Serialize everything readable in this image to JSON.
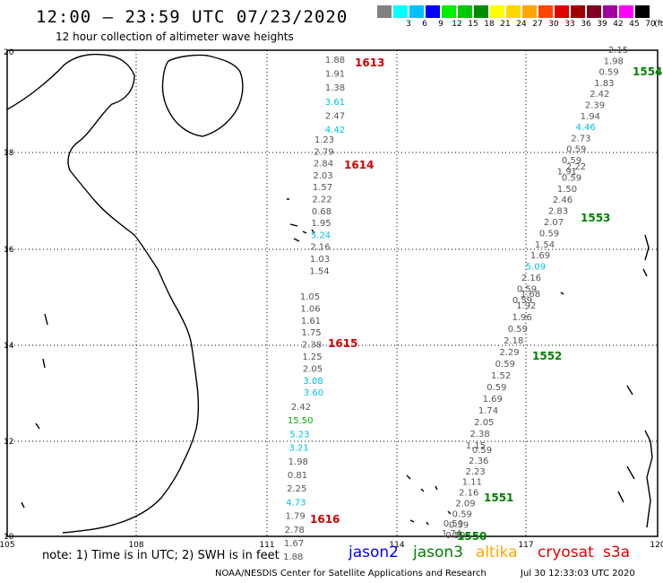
{
  "header": {
    "title": "12:00 – 23:59 UTC 07/23/2020",
    "subtitle": "12 hour collection of altimeter wave heights"
  },
  "scale": {
    "unit": "(ft)",
    "bins": [
      {
        "label": "",
        "color": "#808080"
      },
      {
        "label": "3",
        "color": "#00ffff"
      },
      {
        "label": "6",
        "color": "#00bfff"
      },
      {
        "label": "9",
        "color": "#0000ff"
      },
      {
        "label": "12",
        "color": "#00ee00"
      },
      {
        "label": "15",
        "color": "#00c800"
      },
      {
        "label": "18",
        "color": "#008c00"
      },
      {
        "label": "21",
        "color": "#ffff00"
      },
      {
        "label": "24",
        "color": "#ffd700"
      },
      {
        "label": "27",
        "color": "#ffa500"
      },
      {
        "label": "30",
        "color": "#ff4500"
      },
      {
        "label": "33",
        "color": "#e00000"
      },
      {
        "label": "36",
        "color": "#a00000"
      },
      {
        "label": "39",
        "color": "#800020"
      },
      {
        "label": "42",
        "color": "#a000a0"
      },
      {
        "label": "45",
        "color": "#ff00ff"
      },
      {
        "label": "70",
        "color": "#000000"
      }
    ]
  },
  "axes": {
    "lon_labels": [
      "105",
      "108",
      "111",
      "114",
      "117",
      "120"
    ],
    "lat_labels": [
      "10",
      "12",
      "14",
      "16",
      "18",
      "20"
    ]
  },
  "tracks": [
    {
      "id": "1613",
      "color": "#d00000",
      "values": [
        {
          "v": "1.88",
          "c": "#555555"
        },
        {
          "v": "1.91",
          "c": "#555555"
        },
        {
          "v": "1.38",
          "c": "#555555"
        },
        {
          "v": "3.61",
          "c": "#00c0e0"
        },
        {
          "v": "2.47",
          "c": "#555555"
        },
        {
          "v": "4.42",
          "c": "#00c0e0"
        }
      ]
    },
    {
      "id": "1614",
      "color": "#d00000",
      "values": [
        {
          "v": "1.23",
          "c": "#555555"
        },
        {
          "v": "2.79",
          "c": "#555555"
        },
        {
          "v": "2.84",
          "c": "#555555"
        },
        {
          "v": "2.03",
          "c": "#555555"
        },
        {
          "v": "1.57",
          "c": "#555555"
        },
        {
          "v": "2.22",
          "c": "#555555"
        },
        {
          "v": "0.68",
          "c": "#555555"
        },
        {
          "v": "1.95",
          "c": "#555555"
        },
        {
          "v": "5.24",
          "c": "#00c0e0"
        },
        {
          "v": "2.16",
          "c": "#555555"
        },
        {
          "v": "1.03",
          "c": "#555555"
        },
        {
          "v": "1.54",
          "c": "#555555"
        }
      ]
    },
    {
      "id": "1615",
      "color": "#d00000",
      "values": [
        {
          "v": "1.05",
          "c": "#555555"
        },
        {
          "v": "1.06",
          "c": "#555555"
        },
        {
          "v": "1.61",
          "c": "#555555"
        },
        {
          "v": "1.75",
          "c": "#555555"
        },
        {
          "v": "2.38",
          "c": "#555555"
        },
        {
          "v": "1.25",
          "c": "#555555"
        },
        {
          "v": "2.05",
          "c": "#555555"
        },
        {
          "v": "3.08",
          "c": "#00c0e0"
        },
        {
          "v": "3.60",
          "c": "#00c0e0"
        }
      ]
    },
    {
      "id": "1616",
      "color": "#d00000",
      "values": [
        {
          "v": "2.42",
          "c": "#555555"
        },
        {
          "v": "15.50",
          "c": "#00b000"
        },
        {
          "v": "5.23",
          "c": "#00c0e0"
        },
        {
          "v": "3.21",
          "c": "#00c0e0"
        },
        {
          "v": "1.98",
          "c": "#555555"
        },
        {
          "v": "0.81",
          "c": "#555555"
        },
        {
          "v": "2.25",
          "c": "#555555"
        },
        {
          "v": "4.73",
          "c": "#00c0e0"
        },
        {
          "v": "1.79",
          "c": "#555555"
        },
        {
          "v": "2.78",
          "c": "#555555"
        },
        {
          "v": "1.67",
          "c": "#555555"
        },
        {
          "v": "1.88",
          "c": "#555555"
        }
      ]
    },
    {
      "id": "1554",
      "color": "#008000",
      "values": [
        {
          "v": "2.15",
          "c": "#555555"
        },
        {
          "v": "1.98",
          "c": "#555555"
        },
        {
          "v": "0.59",
          "c": "#555555"
        },
        {
          "v": "1.83",
          "c": "#555555"
        },
        {
          "v": "2.42",
          "c": "#555555"
        },
        {
          "v": "2.39",
          "c": "#555555"
        },
        {
          "v": "1.94",
          "c": "#555555"
        },
        {
          "v": "4.46",
          "c": "#00c0e0"
        },
        {
          "v": "2.73",
          "c": "#555555"
        },
        {
          "v": "0.59",
          "c": "#555555"
        },
        {
          "v": "0.59",
          "c": "#555555"
        },
        {
          "v": "1.91",
          "c": "#555555"
        }
      ]
    },
    {
      "id": "1553",
      "color": "#008000",
      "values": [
        {
          "v": "2.22",
          "c": "#555555"
        },
        {
          "v": "0.59",
          "c": "#555555"
        },
        {
          "v": "1.50",
          "c": "#555555"
        },
        {
          "v": "2.46",
          "c": "#555555"
        },
        {
          "v": "2.83",
          "c": "#555555"
        },
        {
          "v": "2.07",
          "c": "#555555"
        },
        {
          "v": "0.59",
          "c": "#555555"
        },
        {
          "v": "1.54",
          "c": "#555555"
        },
        {
          "v": "1.69",
          "c": "#555555"
        },
        {
          "v": "5.09",
          "c": "#00c0e0"
        },
        {
          "v": "2.16",
          "c": "#555555"
        },
        {
          "v": "0.59",
          "c": "#555555"
        },
        {
          "v": "0.59",
          "c": "#555555"
        }
      ]
    },
    {
      "id": "1552",
      "color": "#008000",
      "values": [
        {
          "v": "1.68",
          "c": "#555555"
        },
        {
          "v": "1.92",
          "c": "#555555"
        },
        {
          "v": "1.96",
          "c": "#555555"
        },
        {
          "v": "0.59",
          "c": "#555555"
        },
        {
          "v": "2.18",
          "c": "#555555"
        },
        {
          "v": "2.29",
          "c": "#555555"
        },
        {
          "v": "0.59",
          "c": "#555555"
        },
        {
          "v": "1.52",
          "c": "#555555"
        },
        {
          "v": "0.59",
          "c": "#555555"
        },
        {
          "v": "1.69",
          "c": "#555555"
        },
        {
          "v": "1.74",
          "c": "#555555"
        },
        {
          "v": "2.05",
          "c": "#555555"
        },
        {
          "v": "2.38",
          "c": "#555555"
        },
        {
          "v": "1.15",
          "c": "#555555"
        }
      ]
    },
    {
      "id": "1551",
      "color": "#008000",
      "values": [
        {
          "v": "0.59",
          "c": "#555555"
        },
        {
          "v": "2.36",
          "c": "#555555"
        },
        {
          "v": "2.23",
          "c": "#555555"
        },
        {
          "v": "1.11",
          "c": "#555555"
        },
        {
          "v": "2.16",
          "c": "#555555"
        },
        {
          "v": "2.09",
          "c": "#555555"
        },
        {
          "v": "0.59",
          "c": "#555555"
        },
        {
          "v": "0.59",
          "c": "#555555"
        },
        {
          "v": "0.59",
          "c": "#555555"
        }
      ]
    },
    {
      "id": "1550",
      "color": "#008000",
      "values": [
        {
          "v": "0.59",
          "c": "#555555"
        },
        {
          "v": "1.74",
          "c": "#555555"
        }
      ]
    }
  ],
  "footer": {
    "note": "note:  1) Time is in UTC;  2) SWH is in feet",
    "legend": [
      {
        "name": "jason2",
        "color": "#0000ff"
      },
      {
        "name": "jason3",
        "color": "#008000"
      },
      {
        "name": "altika",
        "color": "#ffa500"
      },
      {
        "name": "cryosat",
        "color": "#e00000"
      },
      {
        "name": "s3a",
        "color": "#e00000"
      }
    ],
    "credit": "NOAA/NESDIS Center for Satellite Applications and Research",
    "timestamp": "Jul 30 12:33:03 UTC 2020"
  }
}
